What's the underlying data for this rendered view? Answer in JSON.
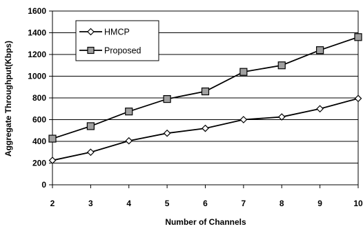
{
  "chart_data": {
    "type": "line",
    "title": "",
    "xlabel": "Number of Channels",
    "ylabel": "Aggregate Throughput(Kbps)",
    "x": [
      2,
      3,
      4,
      5,
      6,
      7,
      8,
      9,
      10
    ],
    "x_tick_labels": [
      "2",
      "3",
      "4",
      "5",
      "6",
      "7",
      "8",
      "9",
      "10"
    ],
    "y_tick_labels": [
      "0",
      "200",
      "400",
      "600",
      "800",
      "1000",
      "1200",
      "1400",
      "1600"
    ],
    "xlim": [
      2,
      10
    ],
    "ylim": [
      0,
      1600
    ],
    "grid": "horizontal",
    "legend_position": "top-left",
    "series": [
      {
        "name": "HMCP",
        "marker": "diamond",
        "color": "#000000",
        "marker_fill": "#ffffff",
        "values": [
          225,
          300,
          405,
          475,
          520,
          600,
          625,
          700,
          795
        ]
      },
      {
        "name": "Proposed",
        "marker": "square",
        "color": "#000000",
        "marker_fill": "#a0a0a0",
        "values": [
          425,
          540,
          675,
          790,
          860,
          1040,
          1100,
          1240,
          1360
        ]
      }
    ]
  }
}
